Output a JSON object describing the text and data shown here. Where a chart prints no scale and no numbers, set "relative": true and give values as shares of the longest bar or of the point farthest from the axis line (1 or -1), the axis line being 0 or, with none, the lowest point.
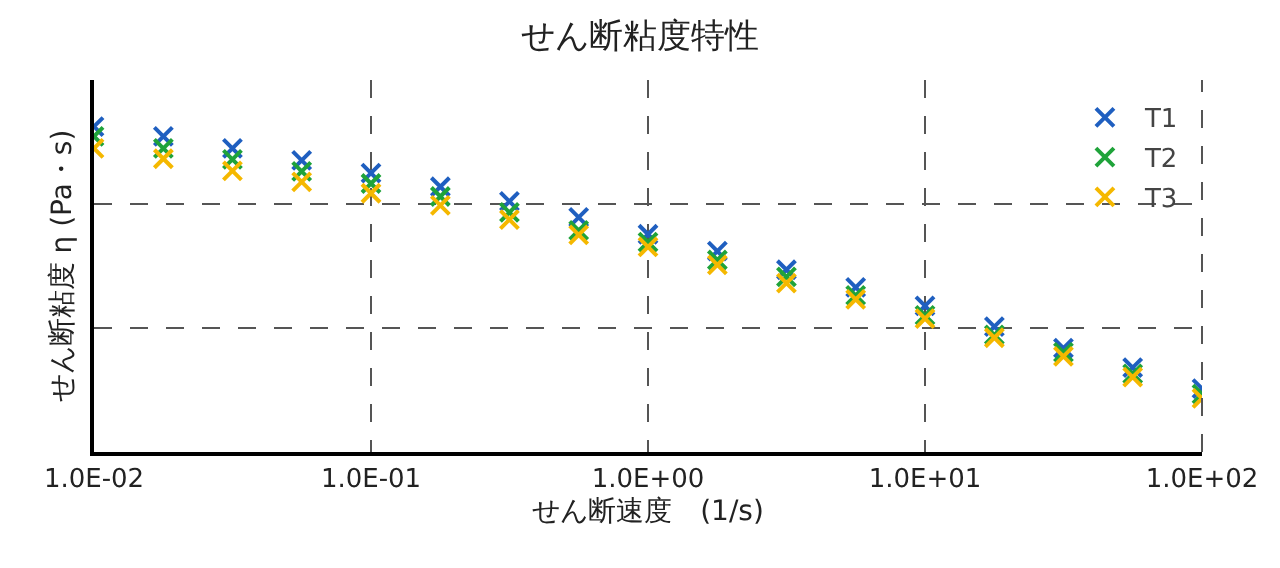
{
  "chart_data": {
    "type": "scatter",
    "title": "せん断粘度特性",
    "xlabel": "せん断速度　(1/s)",
    "ylabel": "せん断粘度 η (Pa・s)",
    "relative": true,
    "log": "x",
    "x": [
      0.01,
      0.0178,
      0.0316,
      0.0562,
      0.1,
      0.178,
      0.316,
      0.562,
      1,
      1.78,
      3.16,
      5.62,
      10,
      17.8,
      31.6,
      56.2,
      100
    ],
    "xlim": [
      0.01,
      100
    ],
    "xticks": [
      {
        "value": 0.01,
        "label": "1.0E-02"
      },
      {
        "value": 0.1,
        "label": "1.0E-01"
      },
      {
        "value": 1,
        "label": "1.0E+00"
      },
      {
        "value": 10,
        "label": "1.0E+01"
      },
      {
        "value": 100,
        "label": "1.0E+02"
      }
    ],
    "series": [
      {
        "name": "T1",
        "color": "#1f5fc0",
        "values": [
          1,
          0.97,
          0.933,
          0.896,
          0.857,
          0.815,
          0.77,
          0.721,
          0.669,
          0.617,
          0.56,
          0.506,
          0.449,
          0.385,
          0.319,
          0.259,
          0.195
        ]
      },
      {
        "name": "T2",
        "color": "#1fa33a",
        "values": [
          0.97,
          0.933,
          0.899,
          0.862,
          0.825,
          0.785,
          0.736,
          0.681,
          0.645,
          0.59,
          0.538,
          0.481,
          0.42,
          0.36,
          0.306,
          0.24,
          0.178
        ]
      },
      {
        "name": "T3",
        "color": "#f5b800",
        "values": [
          0.933,
          0.901,
          0.864,
          0.83,
          0.795,
          0.758,
          0.714,
          0.667,
          0.63,
          0.575,
          0.519,
          0.469,
          0.41,
          0.351,
          0.294,
          0.23,
          0.165
        ]
      }
    ],
    "marker": "cross",
    "grid": true,
    "legend": "top right"
  }
}
